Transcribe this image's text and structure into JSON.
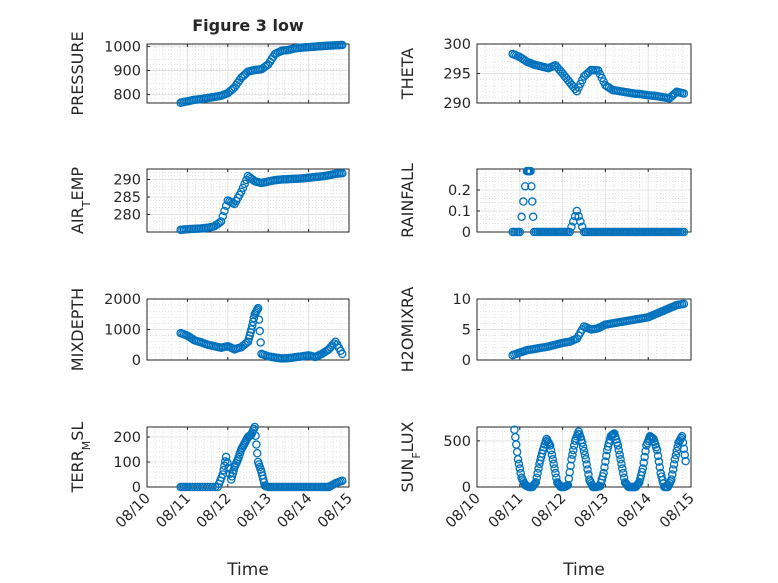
{
  "figure": {
    "title": "Figure 3 low",
    "xlabel": "Time",
    "marker_color": "#0072BD",
    "grid_minor": true
  },
  "chart_data": [
    {
      "type": "scatter",
      "id": "pressure",
      "title": "Figure 3 low",
      "xlabel": "",
      "ylabel": "PRESSURE",
      "xlim": [
        "08/10",
        "08/15"
      ],
      "ylim": [
        765,
        1010
      ],
      "yticks": [
        800,
        900,
        1000
      ],
      "x": [
        "08/10 20:00",
        "08/11 00:00",
        "08/11 04:00",
        "08/11 08:00",
        "08/11 12:00",
        "08/11 16:00",
        "08/11 20:00",
        "08/12 00:00",
        "08/12 04:00",
        "08/12 08:00",
        "08/12 12:00",
        "08/12 16:00",
        "08/12 20:00",
        "08/13 00:00",
        "08/13 04:00",
        "08/13 08:00",
        "08/13 12:00",
        "08/13 16:00",
        "08/13 20:00",
        "08/14 00:00",
        "08/14 04:00",
        "08/14 08:00",
        "08/14 12:00",
        "08/14 16:00",
        "08/14 20:00"
      ],
      "y": [
        766,
        772,
        778,
        781,
        786,
        790,
        795,
        806,
        830,
        870,
        895,
        902,
        905,
        925,
        968,
        982,
        985,
        992,
        995,
        997,
        999,
        1001,
        1003,
        1005,
        1006
      ]
    },
    {
      "type": "scatter",
      "id": "theta",
      "title": "",
      "xlabel": "",
      "ylabel": "THETA",
      "xlim": [
        "08/10",
        "08/15"
      ],
      "ylim": [
        290,
        300
      ],
      "yticks": [
        290,
        295,
        300
      ],
      "x": [
        "08/10 20:00",
        "08/11 00:00",
        "08/11 04:00",
        "08/11 08:00",
        "08/11 12:00",
        "08/11 16:00",
        "08/11 20:00",
        "08/12 00:00",
        "08/12 04:00",
        "08/12 08:00",
        "08/12 12:00",
        "08/12 16:00",
        "08/12 20:00",
        "08/13 00:00",
        "08/13 04:00",
        "08/13 08:00",
        "08/13 12:00",
        "08/13 16:00",
        "08/13 20:00",
        "08/14 00:00",
        "08/14 04:00",
        "08/14 08:00",
        "08/14 12:00",
        "08/14 16:00",
        "08/14 20:00"
      ],
      "y": [
        298.3,
        297.8,
        297.0,
        296.5,
        296.2,
        295.9,
        296.4,
        295.0,
        293.5,
        292.0,
        294.5,
        295.6,
        295.5,
        293.0,
        292.2,
        292.0,
        291.8,
        291.6,
        291.5,
        291.3,
        291.2,
        291.0,
        290.8,
        291.9,
        291.6
      ]
    },
    {
      "type": "scatter",
      "id": "air_temp",
      "title": "",
      "xlabel": "",
      "ylabel": "AIR_TEMP",
      "ylabel_main": "AIR",
      "ylabel_sub": "T",
      "ylabel_rest": "EMP",
      "xlim": [
        "08/10",
        "08/15"
      ],
      "ylim": [
        275,
        293
      ],
      "yticks": [
        280,
        285,
        290
      ],
      "x": [
        "08/10 20:00",
        "08/11 00:00",
        "08/11 04:00",
        "08/11 08:00",
        "08/11 12:00",
        "08/11 16:00",
        "08/11 20:00",
        "08/12 00:00",
        "08/12 04:00",
        "08/12 08:00",
        "08/12 12:00",
        "08/12 16:00",
        "08/12 20:00",
        "08/13 00:00",
        "08/13 04:00",
        "08/13 08:00",
        "08/13 12:00",
        "08/13 16:00",
        "08/13 20:00",
        "08/14 00:00",
        "08/14 04:00",
        "08/14 08:00",
        "08/14 12:00",
        "08/14 16:00",
        "08/14 20:00"
      ],
      "y": [
        275.6,
        275.8,
        275.9,
        276.0,
        276.2,
        276.6,
        278.0,
        284.0,
        283.0,
        286.5,
        291.0,
        289.5,
        289.0,
        289.4,
        289.8,
        290.0,
        290.1,
        290.2,
        290.3,
        290.5,
        290.7,
        290.9,
        291.2,
        291.6,
        291.8
      ]
    },
    {
      "type": "scatter",
      "id": "rainfall",
      "title": "",
      "xlabel": "",
      "ylabel": "RAINFALL",
      "xlim": [
        "08/10",
        "08/15"
      ],
      "ylim": [
        0,
        0.3
      ],
      "yticks": [
        0,
        0.1,
        0.2
      ],
      "x": [
        "08/10 20:00",
        "08/11 00:00",
        "08/11 04:00",
        "08/11 06:00",
        "08/11 08:00",
        "08/11 12:00",
        "08/11 16:00",
        "08/11 20:00",
        "08/12 00:00",
        "08/12 04:00",
        "08/12 08:00",
        "08/12 12:00",
        "08/12 16:00",
        "08/12 20:00",
        "08/13 00:00",
        "08/13 04:00",
        "08/13 08:00",
        "08/13 12:00",
        "08/13 16:00",
        "08/13 20:00",
        "08/14 00:00",
        "08/14 04:00",
        "08/14 08:00",
        "08/14 12:00",
        "08/14 16:00",
        "08/14 20:00"
      ],
      "y": [
        0,
        0,
        0.29,
        0.29,
        0,
        0,
        0,
        0,
        0,
        0,
        0.1,
        0,
        0,
        0,
        0,
        0,
        0,
        0,
        0,
        0,
        0,
        0,
        0,
        0,
        0,
        0
      ]
    },
    {
      "type": "scatter",
      "id": "mixdepth",
      "title": "",
      "xlabel": "",
      "ylabel": "MIXDEPTH",
      "xlim": [
        "08/10",
        "08/15"
      ],
      "ylim": [
        0,
        2000
      ],
      "yticks": [
        0,
        1000,
        2000
      ],
      "x": [
        "08/10 20:00",
        "08/11 00:00",
        "08/11 04:00",
        "08/11 08:00",
        "08/11 12:00",
        "08/11 16:00",
        "08/11 20:00",
        "08/12 00:00",
        "08/12 04:00",
        "08/12 08:00",
        "08/12 12:00",
        "08/12 14:00",
        "08/12 16:00",
        "08/12 18:00",
        "08/12 20:00",
        "08/13 00:00",
        "08/13 04:00",
        "08/13 08:00",
        "08/13 12:00",
        "08/13 16:00",
        "08/13 20:00",
        "08/14 00:00",
        "08/14 04:00",
        "08/14 08:00",
        "08/14 12:00",
        "08/14 16:00",
        "08/14 20:00"
      ],
      "y": [
        880,
        800,
        650,
        580,
        500,
        450,
        400,
        450,
        350,
        420,
        600,
        1000,
        1500,
        1700,
        200,
        120,
        80,
        50,
        60,
        90,
        120,
        150,
        100,
        200,
        350,
        600,
        200
      ]
    },
    {
      "type": "scatter",
      "id": "h2omixra",
      "title": "",
      "xlabel": "",
      "ylabel": "H2OMIXRA",
      "xlim": [
        "08/10",
        "08/15"
      ],
      "ylim": [
        0,
        10
      ],
      "yticks": [
        0,
        5,
        10
      ],
      "x": [
        "08/10 20:00",
        "08/11 00:00",
        "08/11 04:00",
        "08/11 08:00",
        "08/11 12:00",
        "08/11 16:00",
        "08/11 20:00",
        "08/12 00:00",
        "08/12 04:00",
        "08/12 08:00",
        "08/12 12:00",
        "08/12 16:00",
        "08/12 20:00",
        "08/13 00:00",
        "08/13 04:00",
        "08/13 08:00",
        "08/13 12:00",
        "08/13 16:00",
        "08/13 20:00",
        "08/14 00:00",
        "08/14 04:00",
        "08/14 08:00",
        "08/14 12:00",
        "08/14 16:00",
        "08/14 20:00"
      ],
      "y": [
        0.8,
        1.2,
        1.6,
        1.8,
        2.0,
        2.2,
        2.5,
        2.8,
        3.0,
        3.5,
        5.5,
        5.0,
        5.2,
        5.8,
        6.0,
        6.2,
        6.4,
        6.6,
        6.8,
        7.0,
        7.5,
        8.0,
        8.5,
        9.0,
        9.2
      ]
    },
    {
      "type": "scatter",
      "id": "terr_msl",
      "title": "",
      "xlabel": "Time",
      "ylabel": "TERR_MSL",
      "ylabel_main": "TERR",
      "ylabel_sub": "M",
      "ylabel_rest": "SL",
      "xlim": [
        "08/10",
        "08/15"
      ],
      "ylim": [
        0,
        240
      ],
      "yticks": [
        0,
        100,
        200
      ],
      "xticks": [
        "08/10",
        "08/11",
        "08/12",
        "08/13",
        "08/14",
        "08/15"
      ],
      "x": [
        "08/10 20:00",
        "08/11 00:00",
        "08/11 06:00",
        "08/11 12:00",
        "08/11 18:00",
        "08/11 21:00",
        "08/11 23:00",
        "08/12 02:00",
        "08/12 04:00",
        "08/12 06:00",
        "08/12 08:00",
        "08/12 10:00",
        "08/12 12:00",
        "08/12 14:00",
        "08/12 16:00",
        "08/12 18:00",
        "08/12 20:00",
        "08/12 22:00",
        "08/13 00:00",
        "08/13 04:00",
        "08/13 08:00",
        "08/13 12:00",
        "08/13 16:00",
        "08/13 20:00",
        "08/14 00:00",
        "08/14 04:00",
        "08/14 08:00",
        "08/14 12:00",
        "08/14 16:00",
        "08/14 20:00"
      ],
      "y": [
        0,
        0,
        0,
        0,
        0,
        50,
        120,
        30,
        80,
        110,
        150,
        175,
        200,
        210,
        240,
        100,
        60,
        5,
        0,
        0,
        0,
        0,
        0,
        0,
        0,
        0,
        0,
        0,
        15,
        25
      ]
    },
    {
      "type": "scatter",
      "id": "sun_flux",
      "title": "",
      "xlabel": "Time",
      "ylabel": "SUN_FLUX",
      "ylabel_main": "SUN",
      "ylabel_sub": "F",
      "ylabel_rest": "LUX",
      "xlim": [
        "08/10",
        "08/15"
      ],
      "ylim": [
        0,
        650
      ],
      "yticks": [
        0,
        500
      ],
      "xticks": [
        "08/10",
        "08/11",
        "08/12",
        "08/13",
        "08/14",
        "08/15"
      ],
      "x": [
        "08/10 21:00",
        "08/10 23:00",
        "08/11 01:00",
        "08/11 03:00",
        "08/11 05:00",
        "08/11 07:00",
        "08/11 09:00",
        "08/11 11:00",
        "08/11 13:00",
        "08/11 15:00",
        "08/11 17:00",
        "08/11 19:00",
        "08/11 21:00",
        "08/11 23:00",
        "08/12 01:00",
        "08/12 03:00",
        "08/12 05:00",
        "08/12 07:00",
        "08/12 09:00",
        "08/12 11:00",
        "08/12 13:00",
        "08/12 15:00",
        "08/12 17:00",
        "08/12 19:00",
        "08/12 21:00",
        "08/12 23:00",
        "08/13 01:00",
        "08/13 03:00",
        "08/13 05:00",
        "08/13 07:00",
        "08/13 09:00",
        "08/13 11:00",
        "08/13 13:00",
        "08/13 15:00",
        "08/13 17:00",
        "08/13 19:00",
        "08/13 21:00",
        "08/13 23:00",
        "08/14 01:00",
        "08/14 03:00",
        "08/14 05:00",
        "08/14 07:00",
        "08/14 09:00",
        "08/14 11:00",
        "08/14 13:00",
        "08/14 15:00",
        "08/14 17:00",
        "08/14 19:00",
        "08/14 21:00"
      ],
      "y": [
        620,
        300,
        100,
        20,
        0,
        0,
        50,
        250,
        400,
        520,
        450,
        250,
        50,
        0,
        0,
        20,
        300,
        500,
        600,
        480,
        300,
        80,
        0,
        0,
        10,
        150,
        400,
        550,
        580,
        450,
        250,
        50,
        0,
        0,
        0,
        50,
        200,
        450,
        550,
        520,
        400,
        150,
        0,
        0,
        80,
        300,
        480,
        550,
        280
      ]
    }
  ]
}
